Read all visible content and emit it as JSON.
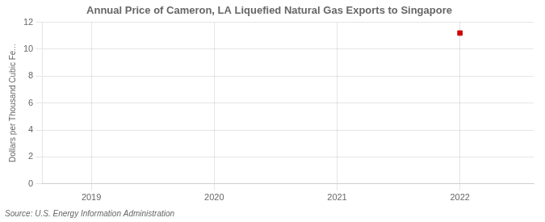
{
  "chart_data": {
    "type": "scatter",
    "title": "Annual Price of Cameron, LA Liquefied Natural Gas Exports to Singapore",
    "ylabel": "Dollars per Thousand Cubic Fe...",
    "annotation": "Source: U.S. Energy Information Administration",
    "x": [
      2022
    ],
    "values": [
      11.2
    ],
    "color": "#cc0000",
    "marker": "square",
    "xlim": [
      2018.6,
      2022.6
    ],
    "xticks": [
      2019,
      2020,
      2021,
      2022
    ],
    "ylim": [
      0,
      12
    ],
    "yticks": [
      0,
      2,
      4,
      6,
      8,
      10,
      12
    ],
    "grid": true
  }
}
